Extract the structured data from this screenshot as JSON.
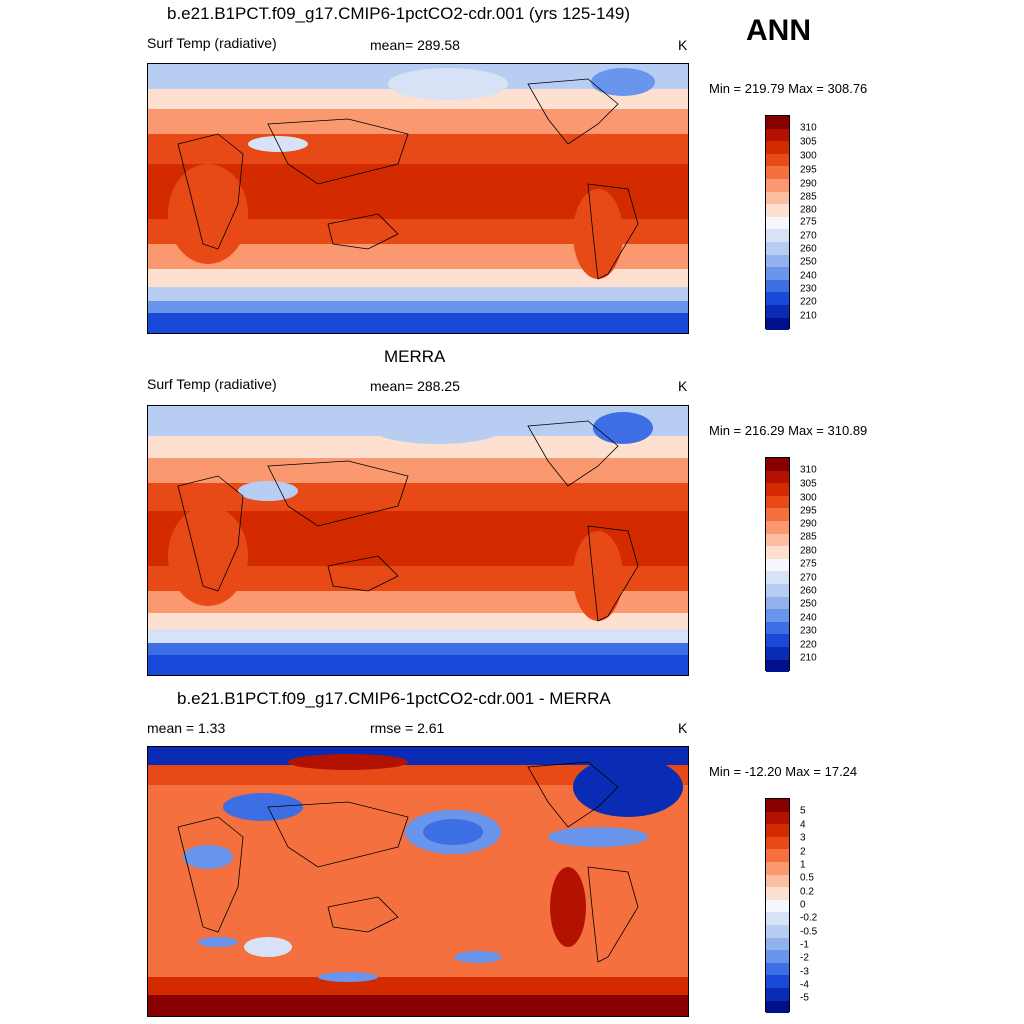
{
  "ann_label": "ANN",
  "unit": "K",
  "panels": [
    {
      "title": "b.e21.B1PCT.f09_g17.CMIP6-1pctCO2-cdr.001 (yrs 125-149)",
      "left_label": "Surf Temp (radiative)",
      "center_label": "mean= 289.58",
      "right_label": "K",
      "minmax": "Min = 219.79 Max = 308.76",
      "colorbar_labels": [
        "310",
        "305",
        "300",
        "295",
        "290",
        "285",
        "280",
        "275",
        "270",
        "260",
        "250",
        "240",
        "230",
        "220",
        "210"
      ],
      "colorbar_colors": [
        "#870000",
        "#b31200",
        "#d42a00",
        "#e84a17",
        "#f4713f",
        "#fa9870",
        "#fbbea1",
        "#fde0cf",
        "#f6f8fd",
        "#d7e2f6",
        "#b7cdf2",
        "#92b2ef",
        "#6995ec",
        "#3e6ee4",
        "#1849d8",
        "#0a2bb3",
        "#000f8a"
      ]
    },
    {
      "title": "MERRA",
      "left_label": "Surf Temp (radiative)",
      "center_label": "mean= 288.25",
      "right_label": "K",
      "minmax": "Min = 216.29 Max = 310.89",
      "colorbar_labels": [
        "310",
        "305",
        "300",
        "295",
        "290",
        "285",
        "280",
        "275",
        "270",
        "260",
        "250",
        "240",
        "230",
        "220",
        "210"
      ],
      "colorbar_colors": [
        "#870000",
        "#b31200",
        "#d42a00",
        "#e84a17",
        "#f4713f",
        "#fa9870",
        "#fbbea1",
        "#fde0cf",
        "#f6f8fd",
        "#d7e2f6",
        "#b7cdf2",
        "#92b2ef",
        "#6995ec",
        "#3e6ee4",
        "#1849d8",
        "#0a2bb3",
        "#000f8a"
      ]
    },
    {
      "title": "b.e21.B1PCT.f09_g17.CMIP6-1pctCO2-cdr.001 - MERRA",
      "left_label": "mean =   1.33",
      "center_label": "rmse =   2.61",
      "right_label": "K",
      "minmax": "Min = -12.20 Max =  17.24",
      "colorbar_labels": [
        "5",
        "4",
        "3",
        "2",
        "1",
        "0.5",
        "0.2",
        "0",
        "-0.2",
        "-0.5",
        "-1",
        "-2",
        "-3",
        "-4",
        "-5"
      ],
      "colorbar_colors": [
        "#870000",
        "#b31200",
        "#d42a00",
        "#e84a17",
        "#f4713f",
        "#fa9870",
        "#fbbea1",
        "#fde0cf",
        "#f6f8fd",
        "#d7e2f6",
        "#b7cdf2",
        "#92b2ef",
        "#6995ec",
        "#3e6ee4",
        "#1849d8",
        "#0a2bb3",
        "#000f8a"
      ]
    }
  ]
}
